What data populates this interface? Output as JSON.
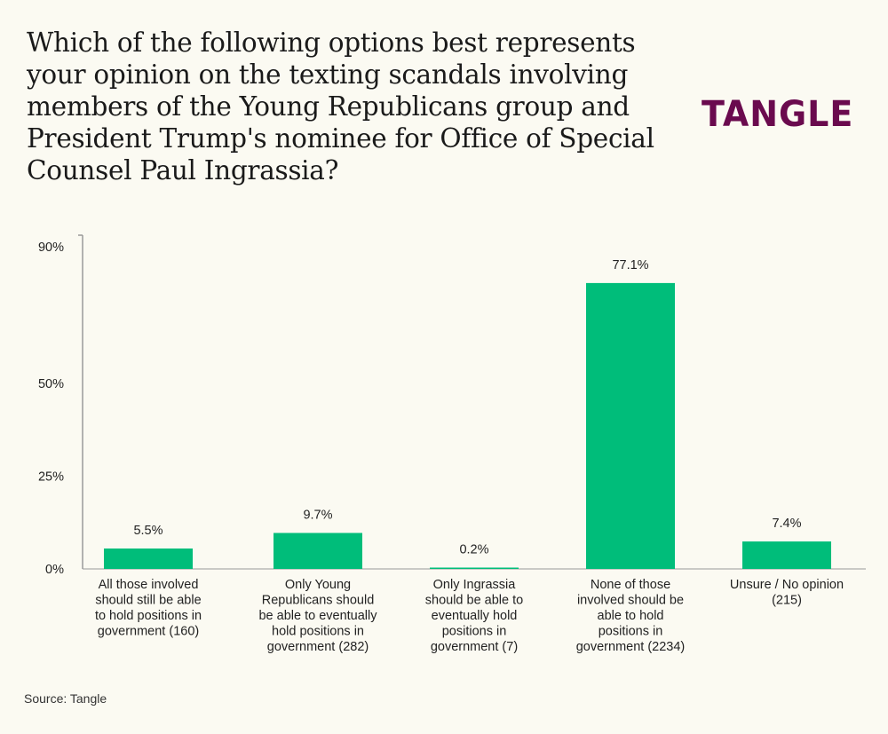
{
  "title": "Which of the following options best represents your opinion on the texting scandals involving members of the Young Republicans group and President Trump's nominee for Office of Special Counsel Paul Ingrassia?",
  "logo": "TANGLE",
  "source": "Source: Tangle",
  "colors": {
    "bar": "#00bd7a",
    "logo": "#6a0a4e",
    "background": "#fbfaf2"
  },
  "chart_data": {
    "type": "bar",
    "title": "Which of the following options best represents your opinion on the texting scandals involving members of the Young Republicans group and President Trump's nominee for Office of Special Counsel Paul Ingrassia?",
    "categories": [
      [
        "All those involved",
        "should still be able",
        "to hold positions in",
        "government (160)"
      ],
      [
        "Only Young",
        "Republicans should",
        "be able to eventually",
        "hold positions in",
        "government (282)"
      ],
      [
        "Only Ingrassia",
        "should be able to",
        "eventually hold",
        "positions in",
        "government (7)"
      ],
      [
        "None of those",
        "involved should be",
        "able to hold",
        "positions in",
        "government (2234)"
      ],
      [
        "Unsure / No opinion",
        "(215)"
      ]
    ],
    "values": [
      5.5,
      9.7,
      0.2,
      77.1,
      7.4
    ],
    "data_labels": [
      "5.5%",
      "9.7%",
      "0.2%",
      "77.1%",
      "7.4%"
    ],
    "yticks": [
      0,
      25,
      50,
      90
    ],
    "ytick_labels": [
      "0%",
      "25%",
      "50%",
      "90%"
    ],
    "ylim": [
      0,
      90
    ],
    "xlabel": "",
    "ylabel": "",
    "grid": false
  }
}
